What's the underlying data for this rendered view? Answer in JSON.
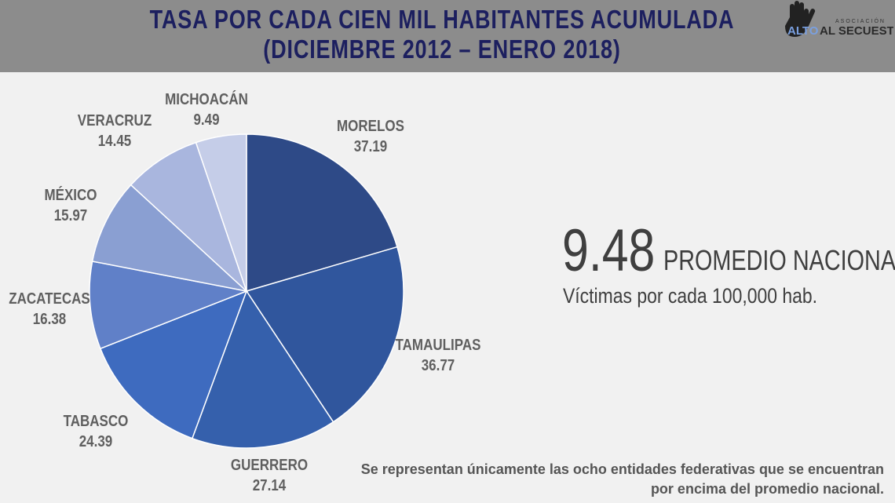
{
  "title_line1": "TASA POR CADA CIEN MIL HABITANTES ACUMULADA",
  "title_line2": "(DICIEMBRE 2012 – ENERO 2018)",
  "logo": {
    "top": "ASOCIACIÓN",
    "alto": "ALTO",
    "rest": "AL SECUESTRO"
  },
  "chart_data": {
    "type": "pie",
    "categories": [
      "MORELOS",
      "TAMAULIPAS",
      "GUERRERO",
      "TABASCO",
      "ZACATECAS",
      "MÉXICO",
      "VERACRUZ",
      "MICHOACÁN"
    ],
    "values": [
      37.19,
      36.77,
      27.14,
      24.39,
      16.38,
      15.97,
      14.45,
      9.49
    ],
    "value_labels": [
      "37.19",
      "36.77",
      "27.14",
      "24.39",
      "16.38",
      "15.97",
      "14.45",
      "9.49"
    ],
    "colors": [
      "#2e4a87",
      "#30569d",
      "#3560ac",
      "#3e6bbf",
      "#6080c8",
      "#8a9fd2",
      "#a9b6de",
      "#c5cde8"
    ],
    "legend": "none"
  },
  "average": {
    "value": "9.48",
    "label": "PROMEDIO NACIONAL",
    "unit": "Víctimas por cada 100,000 hab."
  },
  "note": "Se representan únicamente las ocho entidades federativas que se encuentran por encima del promedio nacional."
}
